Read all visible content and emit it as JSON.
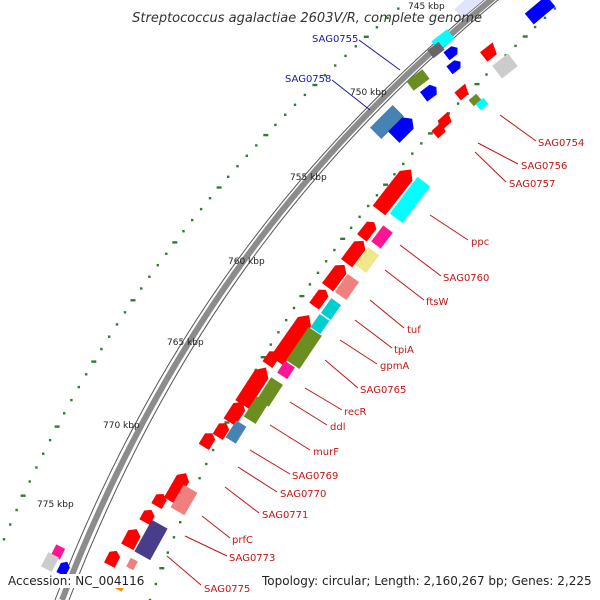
{
  "title": "Streptococcus agalactiae 2603V/R, complete genome",
  "footer": {
    "accession": "Accession: NC_004116",
    "topology": "Topology: circular; Length: 2,160,267 bp; Genes: 2,225"
  },
  "ticks": [
    "745 kbp",
    "750 kbp",
    "755 kbp",
    "760 kbp",
    "765 kbp",
    "770 kbp",
    "775 kbp"
  ],
  "labels_outer": [
    "SAG0755",
    "SAG0758"
  ],
  "labels_inner": [
    "SAG0754",
    "SAG0756",
    "SAG0757",
    "ppc",
    "SAG0760",
    "ftsW",
    "tuf",
    "tpiA",
    "gpmA",
    "SAG0765",
    "recR",
    "ddl",
    "murF",
    "SAG0769",
    "SAG0770",
    "SAG0771",
    "prfC",
    "SAG0773",
    "SAG0775"
  ],
  "colors": {
    "backbone": "#8c8c8c",
    "red": "#ff0000",
    "blue": "#0000ff",
    "cyan": "#00ffff",
    "olive": "#6b8e23",
    "pink": "#f08080",
    "magenta": "#ff1493",
    "yellow": "#f0e68c",
    "steel": "#4682b4",
    "purple": "#483d8b",
    "grey": "#cccccc",
    "label_blue": "#1a1aa8",
    "label_red": "#c41515",
    "tick": "#2e7d32"
  }
}
